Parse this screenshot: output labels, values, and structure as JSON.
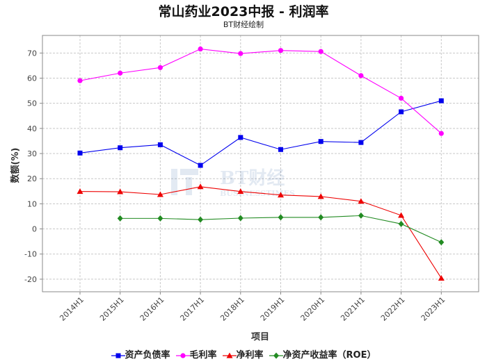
{
  "chart_data": {
    "type": "line",
    "title": "常山药业2023中报 - 利润率",
    "subtitle": "BT财经绘制",
    "watermark": "BT财经 BUSINESSTIMES",
    "xlabel": "项目",
    "ylabel": "数额(%)",
    "ylim": [
      -25,
      77
    ],
    "yticks": [
      -20,
      -10,
      0,
      10,
      20,
      30,
      40,
      50,
      60,
      70
    ],
    "grid": true,
    "legend_position": "bottom",
    "categories": [
      "2014H1",
      "2015H1",
      "2016H1",
      "2017H1",
      "2018H1",
      "2019H1",
      "2020H1",
      "2021H1",
      "2022H1",
      "2023H1"
    ],
    "series": [
      {
        "name": "资产负债率",
        "color": "#0000ee",
        "marker": "square",
        "values": [
          30.2,
          32.3,
          33.5,
          25.3,
          36.4,
          31.6,
          34.8,
          34.4,
          46.6,
          51.0
        ]
      },
      {
        "name": "毛利率",
        "color": "#ff00ff",
        "marker": "circle",
        "values": [
          59.0,
          62.0,
          64.2,
          71.6,
          69.8,
          71.0,
          70.6,
          61.0,
          52.0,
          38.0
        ]
      },
      {
        "name": "净利率",
        "color": "#ee0000",
        "marker": "triangle",
        "values": [
          14.9,
          14.8,
          13.7,
          16.8,
          14.9,
          13.5,
          12.9,
          11.0,
          5.4,
          -19.6
        ]
      },
      {
        "name": "净资产收益率（ROE）",
        "color": "#228b22",
        "marker": "diamond",
        "values": [
          null,
          4.2,
          4.2,
          3.7,
          4.3,
          4.6,
          4.6,
          5.3,
          2.0,
          -5.3
        ]
      }
    ]
  }
}
